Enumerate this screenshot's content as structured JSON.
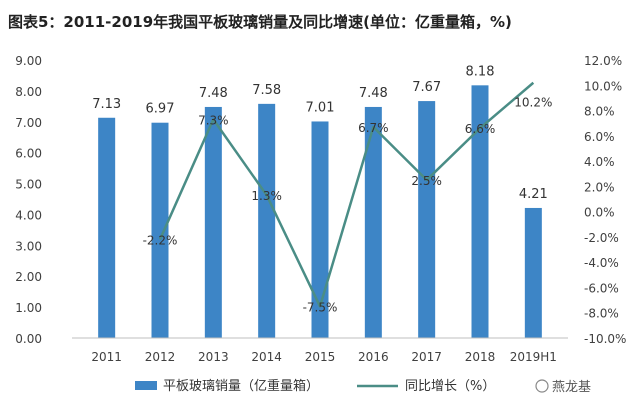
{
  "chart_data": {
    "title": "图表5：2011-2019年我国平板玻璃销量及同比增速(单位：亿重量箱，%)",
    "categories": [
      "2011",
      "2012",
      "2013",
      "2014",
      "2015",
      "2016",
      "2017",
      "2018",
      "2019H1"
    ],
    "series": [
      {
        "name": "平板玻璃销量（亿重量箱）",
        "type": "bar",
        "axis": "left",
        "values": [
          7.13,
          6.97,
          7.48,
          7.58,
          7.01,
          7.48,
          7.67,
          8.18,
          4.21
        ],
        "labels": [
          "7.13",
          "6.97",
          "7.48",
          "7.58",
          "7.01",
          "7.48",
          "7.67",
          "8.18",
          "4.21"
        ]
      },
      {
        "name": "同比增长（%）",
        "type": "line",
        "axis": "right",
        "values": [
          null,
          -2.2,
          7.3,
          1.3,
          -7.5,
          6.7,
          2.5,
          6.6,
          10.2
        ],
        "labels": [
          "",
          "-2.2%",
          "7.3%",
          "1.3%",
          "-7.5%",
          "6.7%",
          "2.5%",
          "6.6%",
          "10.2%"
        ]
      }
    ],
    "left_axis": {
      "ylim": [
        0,
        9
      ],
      "ticks": [
        "0.00",
        "1.00",
        "2.00",
        "3.00",
        "4.00",
        "5.00",
        "6.00",
        "7.00",
        "8.00",
        "9.00"
      ]
    },
    "right_axis": {
      "ylim": [
        -10,
        12
      ],
      "ticks": [
        "-10.0%",
        "-8.0%",
        "-6.0%",
        "-4.0%",
        "-2.0%",
        "0.0%",
        "2.0%",
        "4.0%",
        "6.0%",
        "8.0%",
        "10.0%",
        "12.0%"
      ]
    },
    "grid": false,
    "legend_position": "bottom",
    "source_mark": "燕龙基",
    "colors": {
      "bar": "#3d85c6",
      "line": "#4a8d86",
      "text": "#404040",
      "title": "#222222",
      "axis": "#bfbfbf"
    }
  }
}
